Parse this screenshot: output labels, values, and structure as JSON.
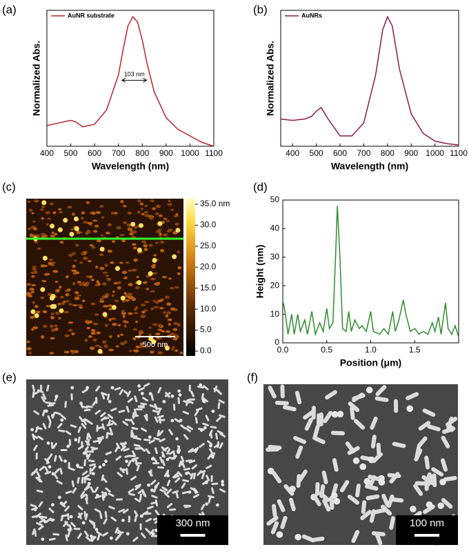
{
  "chart_data": [
    {
      "type": "line",
      "panel": "(a)",
      "xlabel": "Wavelength (nm)",
      "ylabel": "Normalized Abs.",
      "x": [
        400,
        450,
        500,
        520,
        550,
        600,
        650,
        700,
        720,
        740,
        760,
        780,
        800,
        820,
        850,
        900,
        950,
        1000,
        1050,
        1100
      ],
      "series": [
        {
          "name": "AuNR substrate",
          "color": "#b5252b",
          "values": [
            0.16,
            0.18,
            0.2,
            0.19,
            0.15,
            0.17,
            0.28,
            0.55,
            0.75,
            0.93,
            1.0,
            0.96,
            0.82,
            0.64,
            0.42,
            0.22,
            0.13,
            0.08,
            0.03,
            0.0
          ]
        }
      ],
      "xlim": [
        400,
        1100
      ],
      "xticks": [
        400,
        500,
        600,
        700,
        800,
        900,
        1000,
        1100
      ],
      "ylim": [
        0,
        1.05
      ],
      "legend": "upper left",
      "annotation": {
        "text": "103 nm",
        "x": [
          715,
          818
        ],
        "y": 0.51
      }
    },
    {
      "type": "line",
      "panel": "(b)",
      "xlabel": "Wavelength (nm)",
      "ylabel": "Normalized Abs.",
      "x": [
        350,
        400,
        450,
        480,
        500,
        520,
        550,
        600,
        650,
        700,
        750,
        780,
        800,
        820,
        850,
        900,
        950,
        1000,
        1050,
        1100
      ],
      "series": [
        {
          "name": "AuNRs",
          "color": "#8b1a4a",
          "values": [
            0.21,
            0.2,
            0.21,
            0.23,
            0.27,
            0.3,
            0.21,
            0.08,
            0.08,
            0.18,
            0.55,
            0.9,
            1.0,
            0.93,
            0.6,
            0.25,
            0.1,
            0.04,
            0.02,
            0.01
          ]
        }
      ],
      "xlim": [
        350,
        1100
      ],
      "xticks": [
        400,
        500,
        600,
        700,
        800,
        900,
        1000,
        1100
      ],
      "ylim": [
        0,
        1.05
      ],
      "legend": "upper left"
    },
    {
      "type": "afm",
      "panel": "(c)",
      "scale_bar": "500 nm",
      "clim": [
        0,
        35
      ],
      "cticks": [
        {
          "value": 35,
          "label": "35.0 nm"
        },
        {
          "value": 30,
          "label": "30.0"
        },
        {
          "value": 25,
          "label": "25.0"
        },
        {
          "value": 20,
          "label": "20.0"
        },
        {
          "value": 15,
          "label": "15.0"
        },
        {
          "value": 10,
          "label": "10.0"
        },
        {
          "value": 5,
          "label": "5.0"
        },
        {
          "value": 0,
          "label": "0.0"
        }
      ]
    },
    {
      "type": "line",
      "panel": "(d)",
      "xlabel": "Position (μm)",
      "ylabel": "Height (nm)",
      "x": [
        0,
        0.03,
        0.06,
        0.1,
        0.13,
        0.17,
        0.2,
        0.25,
        0.28,
        0.33,
        0.37,
        0.42,
        0.46,
        0.5,
        0.53,
        0.57,
        0.6,
        0.62,
        0.65,
        0.68,
        0.72,
        0.75,
        0.78,
        0.82,
        0.87,
        0.9,
        0.95,
        1.0,
        1.03,
        1.1,
        1.15,
        1.2,
        1.25,
        1.28,
        1.32,
        1.37,
        1.4,
        1.45,
        1.5,
        1.55,
        1.6,
        1.65,
        1.7,
        1.73,
        1.77,
        1.8,
        1.85,
        1.88,
        1.92,
        1.96,
        2.0
      ],
      "series": [
        {
          "name": null,
          "color": "#2e8b2e",
          "values": [
            15,
            10,
            3,
            10,
            3,
            10,
            4,
            8,
            3,
            11,
            3,
            7,
            4,
            12,
            5,
            7,
            30,
            48,
            30,
            5,
            4,
            11,
            4,
            8,
            5,
            6,
            4,
            11,
            4,
            3,
            5,
            3,
            11,
            4,
            8,
            15,
            10,
            4,
            5,
            3,
            4,
            3,
            7,
            4,
            9,
            3,
            14,
            5,
            3,
            6,
            2
          ]
        }
      ],
      "xlim": [
        0,
        2
      ],
      "xticks": [
        {
          "value": 0,
          "label": "0.0"
        },
        0.5,
        {
          "value": 1,
          "label": "1.0"
        },
        1.5
      ],
      "ylim": [
        0,
        50
      ],
      "yticks": [
        0,
        10,
        20,
        30,
        40,
        50
      ]
    },
    {
      "type": "sem",
      "panel": "(e)",
      "scale_bar": "300 nm"
    },
    {
      "type": "sem",
      "panel": "(f)",
      "scale_bar": "100 nm"
    }
  ]
}
